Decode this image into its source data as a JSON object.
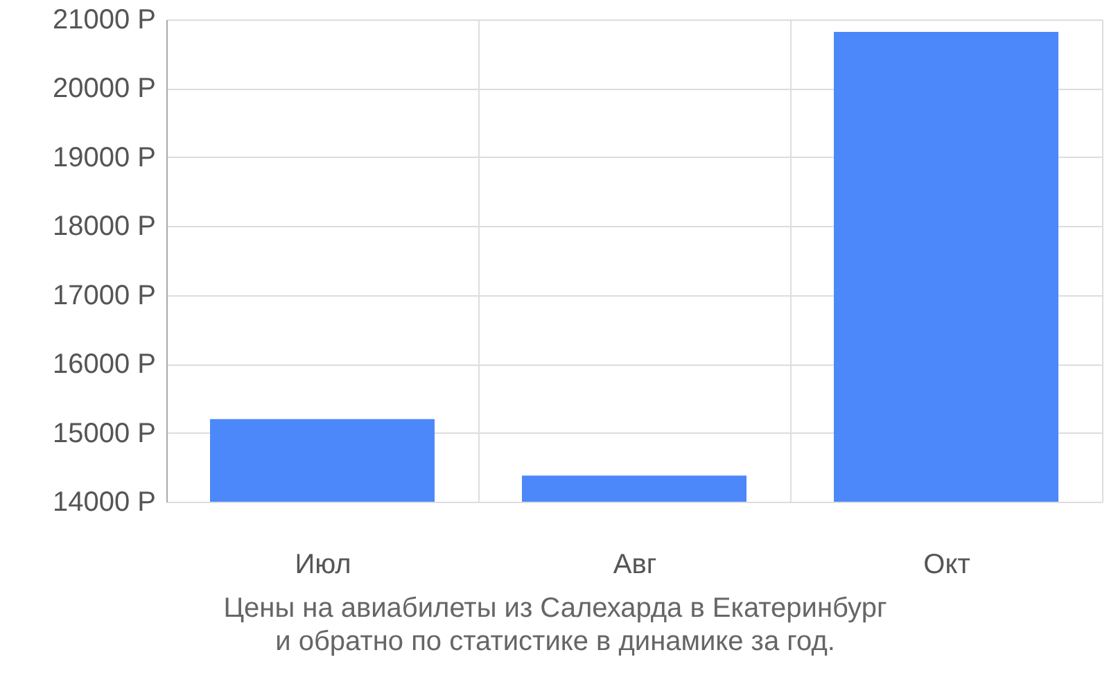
{
  "chart_data": {
    "type": "bar",
    "title": "Цены на авиабилеты из Салехарда в Екатеринбург и обратно по статистике в динамике за год.",
    "categories": [
      "Июл",
      "Авг",
      "Окт"
    ],
    "values": [
      15200,
      14380,
      20820
    ],
    "color": "#4d88fb",
    "ylim": [
      14000,
      21000
    ],
    "yticks": [
      {
        "value": 14000,
        "label": "14000 Р"
      },
      {
        "value": 15000,
        "label": "15000 Р"
      },
      {
        "value": 16000,
        "label": "16000 Р"
      },
      {
        "value": 17000,
        "label": "17000 Р"
      },
      {
        "value": 18000,
        "label": "18000 Р"
      },
      {
        "value": 19000,
        "label": "19000 Р"
      },
      {
        "value": 20000,
        "label": "20000 Р"
      },
      {
        "value": 21000,
        "label": "21000 Р"
      }
    ],
    "grid": true
  }
}
